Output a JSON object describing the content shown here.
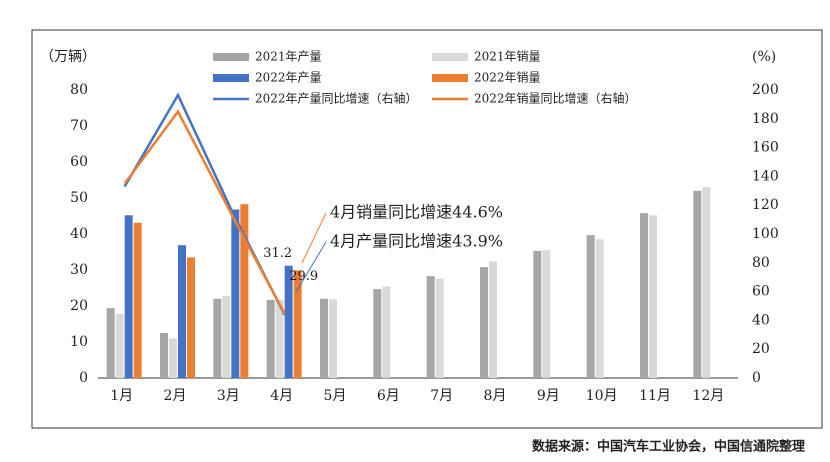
{
  "chart_data": {
    "type": "bar",
    "y_label": "（万辆）",
    "y2_label": "(%)",
    "categories": [
      "1月",
      "2月",
      "3月",
      "4月",
      "5月",
      "6月",
      "7月",
      "8月",
      "9月",
      "10月",
      "11月",
      "12月"
    ],
    "series": [
      {
        "name": "2021年产量",
        "color": "#a6a6a6",
        "values": [
          19.4,
          12.5,
          22,
          21.7,
          22,
          24.7,
          28.3,
          30.8,
          35.3,
          39.7,
          45.8,
          52
        ]
      },
      {
        "name": "2021年销量",
        "color": "#d9d9d9",
        "values": [
          17.8,
          11,
          22.8,
          21.7,
          21.9,
          25.4,
          27.6,
          32.4,
          35.5,
          38.5,
          45.2,
          53
        ]
      },
      {
        "name": "2022年产量",
        "color": "#4472c4",
        "values": [
          45.2,
          36.9,
          46.8,
          31.2,
          null,
          null,
          null,
          null,
          null,
          null,
          null,
          null
        ]
      },
      {
        "name": "2022年销量",
        "color": "#ed7d31",
        "values": [
          43.1,
          33.5,
          48.3,
          29.9,
          null,
          null,
          null,
          null,
          null,
          null,
          null,
          null
        ]
      },
      {
        "name": "2022年产量同比增速（右轴）",
        "color": "#4472c4",
        "type": "line",
        "axis": "y2",
        "values": [
          133,
          196.5,
          116.7,
          43.9,
          null,
          null,
          null,
          null,
          null,
          null,
          null,
          null
        ]
      },
      {
        "name": "2022年销量同比增速（右轴）",
        "color": "#ed7d31",
        "type": "line",
        "axis": "y2",
        "values": [
          135,
          185,
          114,
          44.6,
          null,
          null,
          null,
          null,
          null,
          null,
          null,
          null
        ]
      }
    ],
    "annotations": [
      {
        "text": "4月销量同比增速44.6%",
        "color": "#ed7d31"
      },
      {
        "text": "4月产量同比增速43.9%",
        "color": "#4472c4"
      }
    ],
    "ylim": [
      0,
      80
    ],
    "yticks": [
      0,
      10,
      20,
      30,
      40,
      50,
      60,
      70,
      80
    ],
    "y2lim": [
      0,
      200
    ],
    "y2ticks": [
      0,
      20,
      40,
      60,
      80,
      100,
      120,
      140,
      160,
      180,
      200
    ],
    "grid": false
  },
  "source": "数据来源：中国汽车工业协会，中国信通院整理"
}
